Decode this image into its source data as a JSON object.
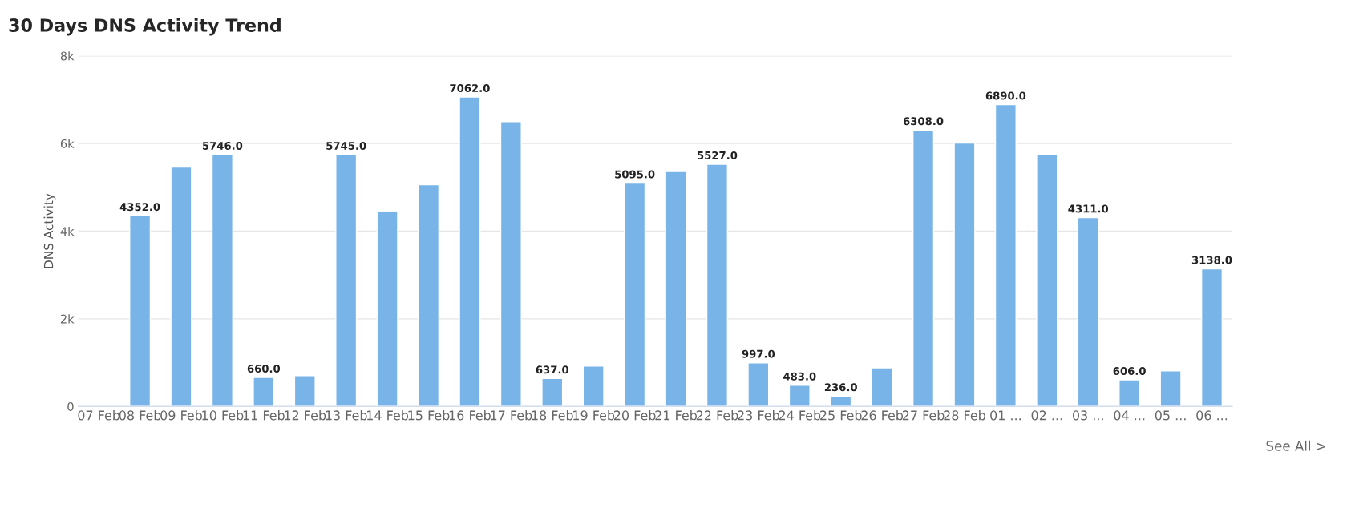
{
  "chart_data": {
    "type": "bar",
    "title": "30 Days DNS Activity Trend",
    "ylabel": "DNS Activity",
    "categories": [
      "07 Feb",
      "08 Feb",
      "09 Feb",
      "10 Feb",
      "11 Feb",
      "12 Feb",
      "13 Feb",
      "14 Feb",
      "15 Feb",
      "16 Feb",
      "17 Feb",
      "18 Feb",
      "19 Feb",
      "20 Feb",
      "21 Feb",
      "22 Feb",
      "23 Feb",
      "24 Feb",
      "25 Feb",
      "26 Feb",
      "27 Feb",
      "28 Feb",
      "01 ...",
      "02 ...",
      "03 ...",
      "04 ...",
      "05 ...",
      "06 ..."
    ],
    "values": [
      null,
      4352,
      5460,
      5746,
      660,
      700,
      5745,
      4450,
      5060,
      7062,
      6500,
      637,
      920,
      5095,
      5360,
      5527,
      997,
      483,
      236,
      880,
      6308,
      6010,
      6890,
      5760,
      4311,
      606,
      810,
      3138
    ],
    "value_labels": [
      null,
      "4352.0",
      null,
      "5746.0",
      "660.0",
      null,
      "5745.0",
      null,
      null,
      "7062.0",
      null,
      "637.0",
      null,
      "5095.0",
      null,
      "5527.0",
      "997.0",
      "483.0",
      "236.0",
      null,
      "6308.0",
      null,
      "6890.0",
      null,
      "4311.0",
      "606.0",
      null,
      "3138.0"
    ],
    "color": "#78b4e8",
    "ylim": [
      0,
      8000
    ],
    "yticks": [
      {
        "value": 0,
        "label": "0"
      },
      {
        "value": 2000,
        "label": "2k"
      },
      {
        "value": 4000,
        "label": "4k"
      },
      {
        "value": 6000,
        "label": "6k"
      },
      {
        "value": 8000,
        "label": "8k"
      }
    ],
    "grid": "y",
    "annotations": [
      "See All >"
    ]
  }
}
